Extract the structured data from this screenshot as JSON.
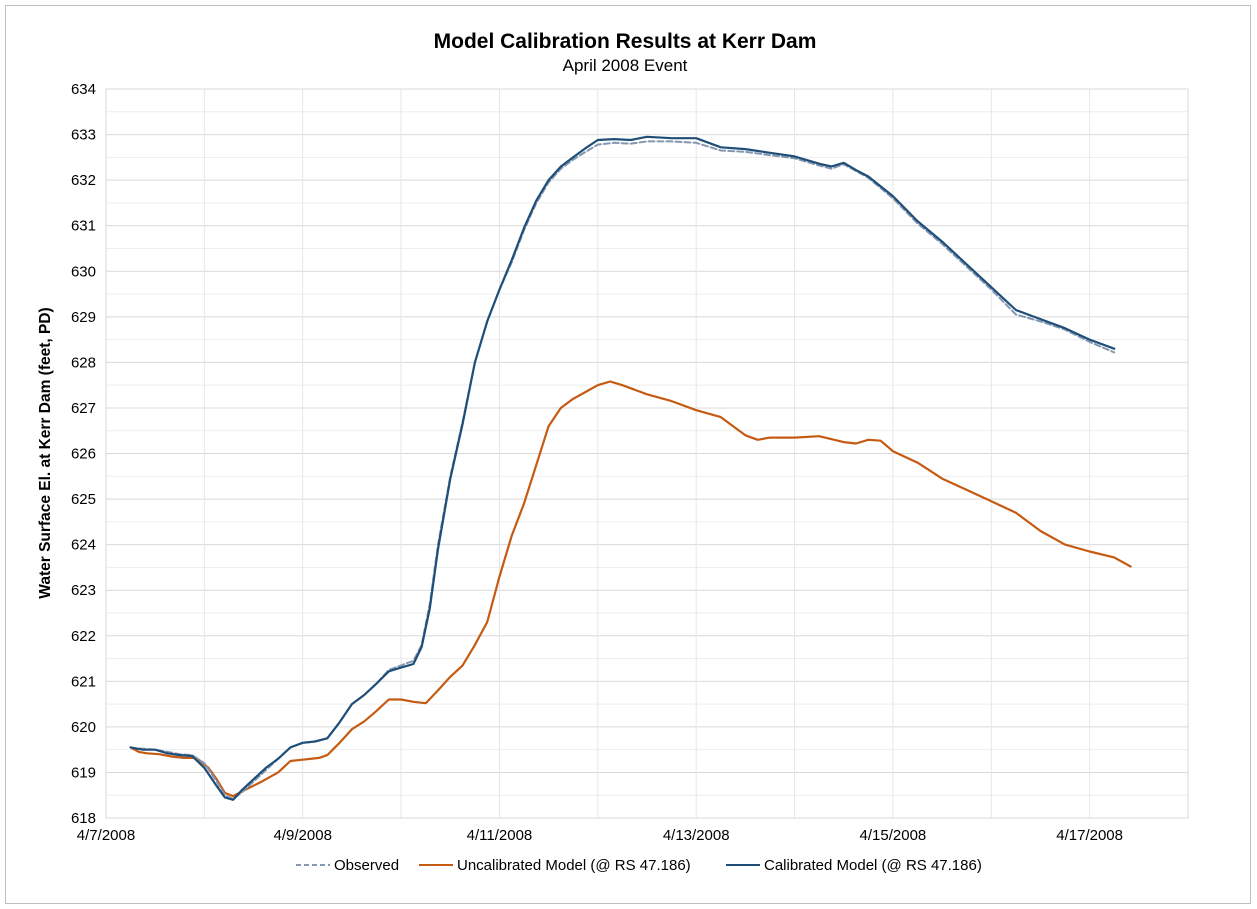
{
  "chart_data": {
    "type": "line",
    "title": "Model Calibration Results at Kerr Dam",
    "subtitle": "April 2008 Event",
    "ylabel": "Water Surface El. at  Kerr Dam (feet, PD)",
    "xlabel": "",
    "ylim": [
      618,
      634
    ],
    "yticks": [
      618,
      619,
      620,
      621,
      622,
      623,
      624,
      625,
      626,
      627,
      628,
      629,
      630,
      631,
      632,
      633,
      634
    ],
    "xlim": [
      "4/7/2008",
      "4/18/2008"
    ],
    "xticks": [
      "4/7/2008",
      "4/9/2008",
      "4/11/2008",
      "4/13/2008",
      "4/15/2008",
      "4/17/2008"
    ],
    "x_minor_gridline_interval_days": 1,
    "y_minor_gridline_interval": 0.5,
    "grid": true,
    "legend_position": "bottom",
    "series": [
      {
        "name": "Observed",
        "color": "#8497b0",
        "style": "dashed",
        "points": [
          [
            "4/7/2008 06:00",
            619.55
          ],
          [
            "4/7/2008 07:00",
            619.53
          ],
          [
            "4/7/2008 09:00",
            619.52
          ],
          [
            "4/7/2008 12:00",
            619.5
          ],
          [
            "4/7/2008 15:00",
            619.45
          ],
          [
            "4/7/2008 18:00",
            619.4
          ],
          [
            "4/7/2008 21:00",
            619.38
          ],
          [
            "4/8/2008 00:00",
            619.2
          ],
          [
            "4/8/2008 03:00",
            618.8
          ],
          [
            "4/8/2008 05:00",
            618.5
          ],
          [
            "4/8/2008 07:00",
            618.42
          ],
          [
            "4/8/2008 09:00",
            618.55
          ],
          [
            "4/8/2008 12:00",
            618.8
          ],
          [
            "4/8/2008 15:00",
            619.05
          ],
          [
            "4/8/2008 18:00",
            619.3
          ],
          [
            "4/8/2008 21:00",
            619.55
          ],
          [
            "4/9/2008 00:00",
            619.65
          ],
          [
            "4/9/2008 03:00",
            619.68
          ],
          [
            "4/9/2008 06:00",
            619.75
          ],
          [
            "4/9/2008 09:00",
            620.1
          ],
          [
            "4/9/2008 12:00",
            620.5
          ],
          [
            "4/9/2008 15:00",
            620.7
          ],
          [
            "4/9/2008 18:00",
            620.95
          ],
          [
            "4/9/2008 21:00",
            621.25
          ],
          [
            "4/10/2008 00:00",
            621.35
          ],
          [
            "4/10/2008 03:00",
            621.45
          ],
          [
            "4/10/2008 05:00",
            621.8
          ],
          [
            "4/10/2008 07:00",
            622.7
          ],
          [
            "4/10/2008 09:00",
            624.0
          ],
          [
            "4/10/2008 12:00",
            625.5
          ],
          [
            "4/10/2008 15:00",
            626.7
          ],
          [
            "4/10/2008 18:00",
            628.0
          ],
          [
            "4/10/2008 21:00",
            628.9
          ],
          [
            "4/11/2008 00:00",
            629.6
          ],
          [
            "4/11/2008 03:00",
            630.2
          ],
          [
            "4/11/2008 06:00",
            630.9
          ],
          [
            "4/11/2008 09:00",
            631.5
          ],
          [
            "4/11/2008 12:00",
            631.95
          ],
          [
            "4/11/2008 15:00",
            632.25
          ],
          [
            "4/11/2008 18:00",
            632.45
          ],
          [
            "4/11/2008 21:00",
            632.62
          ],
          [
            "4/12/2008 00:00",
            632.78
          ],
          [
            "4/12/2008 04:00",
            632.82
          ],
          [
            "4/12/2008 08:00",
            632.8
          ],
          [
            "4/12/2008 12:00",
            632.85
          ],
          [
            "4/12/2008 18:00",
            632.85
          ],
          [
            "4/13/2008 00:00",
            632.82
          ],
          [
            "4/13/2008 06:00",
            632.65
          ],
          [
            "4/13/2008 12:00",
            632.62
          ],
          [
            "4/13/2008 18:00",
            632.55
          ],
          [
            "4/14/2008 00:00",
            632.48
          ],
          [
            "4/14/2008 06:00",
            632.32
          ],
          [
            "4/14/2008 09:00",
            632.25
          ],
          [
            "4/14/2008 12:00",
            632.35
          ],
          [
            "4/14/2008 15:00",
            632.2
          ],
          [
            "4/14/2008 18:00",
            632.05
          ],
          [
            "4/15/2008 00:00",
            631.6
          ],
          [
            "4/15/2008 06:00",
            631.05
          ],
          [
            "4/15/2008 12:00",
            630.6
          ],
          [
            "4/15/2008 18:00",
            630.1
          ],
          [
            "4/16/2008 00:00",
            629.6
          ],
          [
            "4/16/2008 06:00",
            629.05
          ],
          [
            "4/16/2008 12:00",
            628.9
          ],
          [
            "4/16/2008 18:00",
            628.72
          ],
          [
            "4/17/2008 00:00",
            628.45
          ],
          [
            "4/17/2008 06:00",
            628.22
          ]
        ]
      },
      {
        "name": "Uncalibrated Model (@ RS 47.186)",
        "color": "#c55a11",
        "style": "solid",
        "points": [
          [
            "4/7/2008 06:00",
            619.55
          ],
          [
            "4/7/2008 08:00",
            619.45
          ],
          [
            "4/7/2008 10:00",
            619.42
          ],
          [
            "4/7/2008 13:00",
            619.4
          ],
          [
            "4/7/2008 16:00",
            619.35
          ],
          [
            "4/7/2008 19:00",
            619.32
          ],
          [
            "4/7/2008 22:00",
            619.32
          ],
          [
            "4/8/2008 01:00",
            619.1
          ],
          [
            "4/8/2008 03:00",
            618.85
          ],
          [
            "4/8/2008 05:00",
            618.55
          ],
          [
            "4/8/2008 07:00",
            618.48
          ],
          [
            "4/8/2008 10:00",
            618.62
          ],
          [
            "4/8/2008 14:00",
            618.8
          ],
          [
            "4/8/2008 18:00",
            619.0
          ],
          [
            "4/8/2008 21:00",
            619.25
          ],
          [
            "4/9/2008 00:00",
            619.28
          ],
          [
            "4/9/2008 04:00",
            619.32
          ],
          [
            "4/9/2008 06:00",
            619.38
          ],
          [
            "4/9/2008 09:00",
            619.65
          ],
          [
            "4/9/2008 12:00",
            619.95
          ],
          [
            "4/9/2008 15:00",
            620.12
          ],
          [
            "4/9/2008 18:00",
            620.35
          ],
          [
            "4/9/2008 21:00",
            620.6
          ],
          [
            "4/10/2008 00:00",
            620.6
          ],
          [
            "4/10/2008 03:00",
            620.55
          ],
          [
            "4/10/2008 06:00",
            620.52
          ],
          [
            "4/10/2008 09:00",
            620.8
          ],
          [
            "4/10/2008 12:00",
            621.1
          ],
          [
            "4/10/2008 15:00",
            621.35
          ],
          [
            "4/10/2008 18:00",
            621.8
          ],
          [
            "4/10/2008 21:00",
            622.3
          ],
          [
            "4/11/2008 00:00",
            623.3
          ],
          [
            "4/11/2008 03:00",
            624.2
          ],
          [
            "4/11/2008 06:00",
            624.9
          ],
          [
            "4/11/2008 09:00",
            625.75
          ],
          [
            "4/11/2008 12:00",
            626.6
          ],
          [
            "4/11/2008 15:00",
            627.0
          ],
          [
            "4/11/2008 18:00",
            627.2
          ],
          [
            "4/11/2008 21:00",
            627.35
          ],
          [
            "4/12/2008 00:00",
            627.5
          ],
          [
            "4/12/2008 03:00",
            627.58
          ],
          [
            "4/12/2008 06:00",
            627.5
          ],
          [
            "4/12/2008 12:00",
            627.3
          ],
          [
            "4/12/2008 18:00",
            627.15
          ],
          [
            "4/13/2008 00:00",
            626.95
          ],
          [
            "4/13/2008 06:00",
            626.8
          ],
          [
            "4/13/2008 09:00",
            626.6
          ],
          [
            "4/13/2008 12:00",
            626.4
          ],
          [
            "4/13/2008 15:00",
            626.3
          ],
          [
            "4/13/2008 18:00",
            626.35
          ],
          [
            "4/14/2008 00:00",
            626.35
          ],
          [
            "4/14/2008 06:00",
            626.38
          ],
          [
            "4/14/2008 12:00",
            626.25
          ],
          [
            "4/14/2008 15:00",
            626.22
          ],
          [
            "4/14/2008 18:00",
            626.3
          ],
          [
            "4/14/2008 21:00",
            626.28
          ],
          [
            "4/15/2008 00:00",
            626.05
          ],
          [
            "4/15/2008 06:00",
            625.8
          ],
          [
            "4/15/2008 12:00",
            625.45
          ],
          [
            "4/15/2008 18:00",
            625.2
          ],
          [
            "4/16/2008 00:00",
            624.95
          ],
          [
            "4/16/2008 06:00",
            624.7
          ],
          [
            "4/16/2008 12:00",
            624.3
          ],
          [
            "4/16/2008 18:00",
            624.0
          ],
          [
            "4/17/2008 00:00",
            623.85
          ],
          [
            "4/17/2008 06:00",
            623.72
          ],
          [
            "4/17/2008 10:00",
            623.52
          ]
        ]
      },
      {
        "name": "Calibrated Model  (@ RS 47.186)",
        "color": "#1f4e79",
        "style": "solid",
        "points": [
          [
            "4/7/2008 06:00",
            619.55
          ],
          [
            "4/7/2008 09:00",
            619.5
          ],
          [
            "4/7/2008 12:00",
            619.5
          ],
          [
            "4/7/2008 15:00",
            619.42
          ],
          [
            "4/7/2008 18:00",
            619.38
          ],
          [
            "4/7/2008 21:00",
            619.36
          ],
          [
            "4/8/2008 00:00",
            619.1
          ],
          [
            "4/8/2008 03:00",
            618.7
          ],
          [
            "4/8/2008 05:00",
            618.45
          ],
          [
            "4/8/2008 07:00",
            618.4
          ],
          [
            "4/8/2008 09:00",
            618.6
          ],
          [
            "4/8/2008 12:00",
            618.85
          ],
          [
            "4/8/2008 15:00",
            619.1
          ],
          [
            "4/8/2008 18:00",
            619.3
          ],
          [
            "4/8/2008 21:00",
            619.55
          ],
          [
            "4/9/2008 00:00",
            619.65
          ],
          [
            "4/9/2008 03:00",
            619.68
          ],
          [
            "4/9/2008 06:00",
            619.75
          ],
          [
            "4/9/2008 09:00",
            620.1
          ],
          [
            "4/9/2008 12:00",
            620.5
          ],
          [
            "4/9/2008 15:00",
            620.7
          ],
          [
            "4/9/2008 18:00",
            620.95
          ],
          [
            "4/9/2008 21:00",
            621.22
          ],
          [
            "4/10/2008 00:00",
            621.3
          ],
          [
            "4/10/2008 03:00",
            621.38
          ],
          [
            "4/10/2008 05:00",
            621.75
          ],
          [
            "4/10/2008 07:00",
            622.6
          ],
          [
            "4/10/2008 09:00",
            623.9
          ],
          [
            "4/10/2008 12:00",
            625.45
          ],
          [
            "4/10/2008 15:00",
            626.65
          ],
          [
            "4/10/2008 18:00",
            628.0
          ],
          [
            "4/10/2008 21:00",
            628.9
          ],
          [
            "4/11/2008 00:00",
            629.6
          ],
          [
            "4/11/2008 03:00",
            630.25
          ],
          [
            "4/11/2008 06:00",
            630.95
          ],
          [
            "4/11/2008 09:00",
            631.55
          ],
          [
            "4/11/2008 12:00",
            632.0
          ],
          [
            "4/11/2008 15:00",
            632.3
          ],
          [
            "4/11/2008 18:00",
            632.5
          ],
          [
            "4/11/2008 21:00",
            632.7
          ],
          [
            "4/12/2008 00:00",
            632.88
          ],
          [
            "4/12/2008 04:00",
            632.9
          ],
          [
            "4/12/2008 08:00",
            632.88
          ],
          [
            "4/12/2008 12:00",
            632.95
          ],
          [
            "4/12/2008 18:00",
            632.92
          ],
          [
            "4/13/2008 00:00",
            632.92
          ],
          [
            "4/13/2008 06:00",
            632.72
          ],
          [
            "4/13/2008 12:00",
            632.68
          ],
          [
            "4/13/2008 18:00",
            632.6
          ],
          [
            "4/14/2008 00:00",
            632.52
          ],
          [
            "4/14/2008 06:00",
            632.36
          ],
          [
            "4/14/2008 09:00",
            632.3
          ],
          [
            "4/14/2008 12:00",
            632.38
          ],
          [
            "4/14/2008 15:00",
            632.22
          ],
          [
            "4/14/2008 18:00",
            632.08
          ],
          [
            "4/15/2008 00:00",
            631.65
          ],
          [
            "4/15/2008 06:00",
            631.1
          ],
          [
            "4/15/2008 12:00",
            630.65
          ],
          [
            "4/15/2008 18:00",
            630.15
          ],
          [
            "4/16/2008 00:00",
            629.65
          ],
          [
            "4/16/2008 06:00",
            629.15
          ],
          [
            "4/16/2008 12:00",
            628.95
          ],
          [
            "4/16/2008 18:00",
            628.75
          ],
          [
            "4/17/2008 00:00",
            628.5
          ],
          [
            "4/17/2008 06:00",
            628.3
          ]
        ]
      }
    ]
  }
}
